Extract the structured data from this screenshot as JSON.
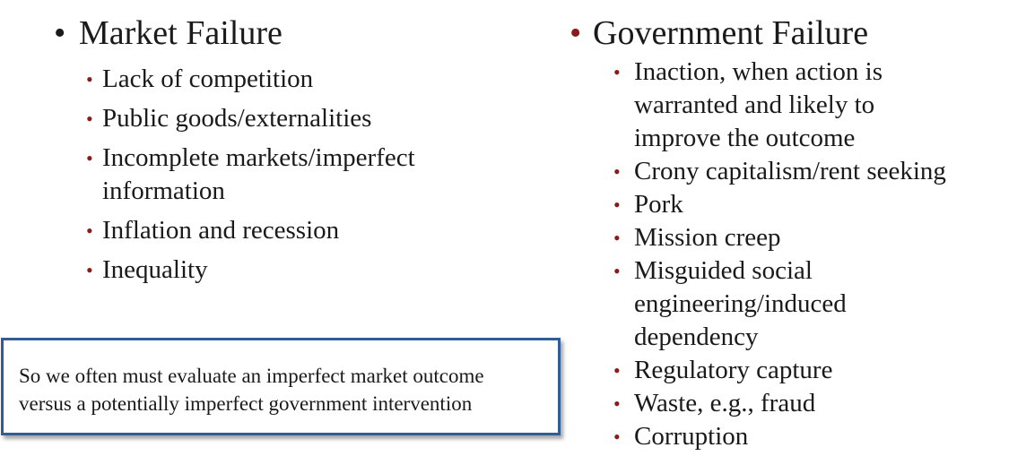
{
  "left": {
    "bullet": "•",
    "heading": "Market Failure",
    "items": [
      "Lack of competition",
      "Public goods/externalities",
      "Incomplete markets/imperfect information",
      "Inflation and recession",
      "Inequality"
    ]
  },
  "right": {
    "bullet": "•",
    "heading": "Government Failure",
    "items": [
      "Inaction, when action is warranted and likely to improve the outcome",
      "Crony capitalism/rent seeking",
      "Pork",
      "Mission creep",
      "Misguided social engineering/induced dependency",
      "Regulatory capture",
      "Waste, e.g., fraud",
      "Corruption"
    ]
  },
  "sub_bullet": "•",
  "callout": {
    "line1": "So we often must evaluate an imperfect market outcome",
    "line2": "versus a potentially imperfect government intervention"
  },
  "colors": {
    "bullet_red": "#8b1a1a",
    "box_border": "#2f5d94",
    "text": "#1a1a1a"
  }
}
